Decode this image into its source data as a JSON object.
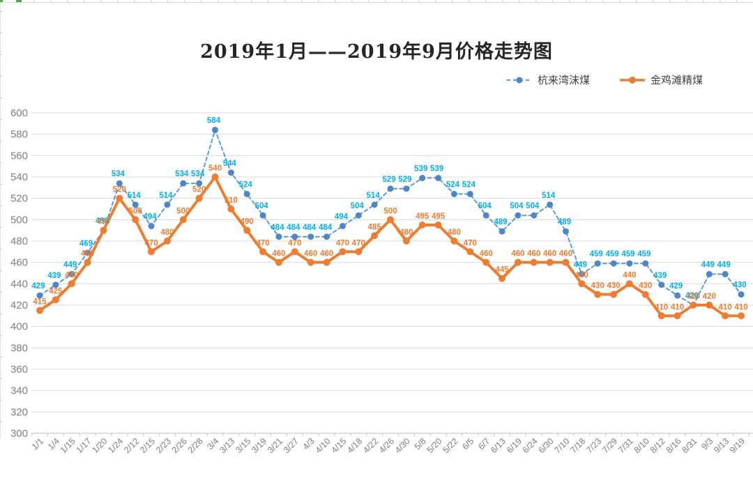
{
  "page": {
    "background": "#ffffff",
    "sheet_remnant_color": "#d9d9d9",
    "selection_handle_color": "#3fae49"
  },
  "chart_data": {
    "type": "line",
    "title": "2019年1月——2019年9月价格走势图",
    "categories": [
      "1/1",
      "1/4",
      "1/15",
      "1/17",
      "1/20",
      "1/24",
      "2/12",
      "2/15",
      "2/23",
      "2/26",
      "2/28",
      "3/4",
      "3/13",
      "3/15",
      "3/19",
      "3/21",
      "3/27",
      "4/3",
      "4/10",
      "4/15",
      "4/18",
      "4/22",
      "4/26",
      "4/30",
      "5/8",
      "5/20",
      "5/22",
      "6/5",
      "6/7",
      "6/13",
      "6/19",
      "6/24",
      "6/30",
      "7/10",
      "7/18",
      "7/23",
      "7/29",
      "7/31",
      "8/10",
      "8/12",
      "8/16",
      "8/31",
      "9/3",
      "9/13",
      "9/19"
    ],
    "series": [
      {
        "name": "杭来湾沫煤",
        "values": [
          429,
          439,
          449,
          469,
          490,
          534,
          514,
          494,
          514,
          534,
          534,
          584,
          544,
          524,
          504,
          484,
          484,
          484,
          484,
          494,
          504,
          514,
          529,
          529,
          539,
          539,
          524,
          524,
          504,
          489,
          504,
          504,
          514,
          489,
          449,
          459,
          459,
          459,
          459,
          439,
          429,
          420,
          449,
          449,
          430
        ],
        "line_color": "#5B9BD5",
        "marker_color": "#4E86C8",
        "label_color": "#00B0F0",
        "line_style": "dashed",
        "marker": "circle"
      },
      {
        "name": "金鸡滩精煤",
        "values": [
          415,
          425,
          440,
          460,
          490,
          520,
          500,
          470,
          480,
          500,
          520,
          540,
          510,
          490,
          470,
          460,
          470,
          460,
          460,
          470,
          470,
          485,
          500,
          480,
          495,
          495,
          480,
          470,
          460,
          445,
          460,
          460,
          460,
          460,
          440,
          430,
          430,
          440,
          430,
          410,
          410,
          420,
          420,
          410,
          410
        ],
        "line_color": "#ED7D31",
        "marker_color": "#ED7D31",
        "label_color": "#ED7D31",
        "line_style": "solid",
        "marker": "circle"
      }
    ],
    "xlabel": "",
    "ylabel": "",
    "y_axis": {
      "min": 300,
      "max": 600,
      "step": 20
    },
    "x_tick_rotation": 45,
    "grid": true,
    "grid_color": "#d9d9d9",
    "axis_color": "#bfbfbf",
    "axis_text_color": "#7f7f7f",
    "legend_position": "top-right",
    "data_labels": true
  }
}
